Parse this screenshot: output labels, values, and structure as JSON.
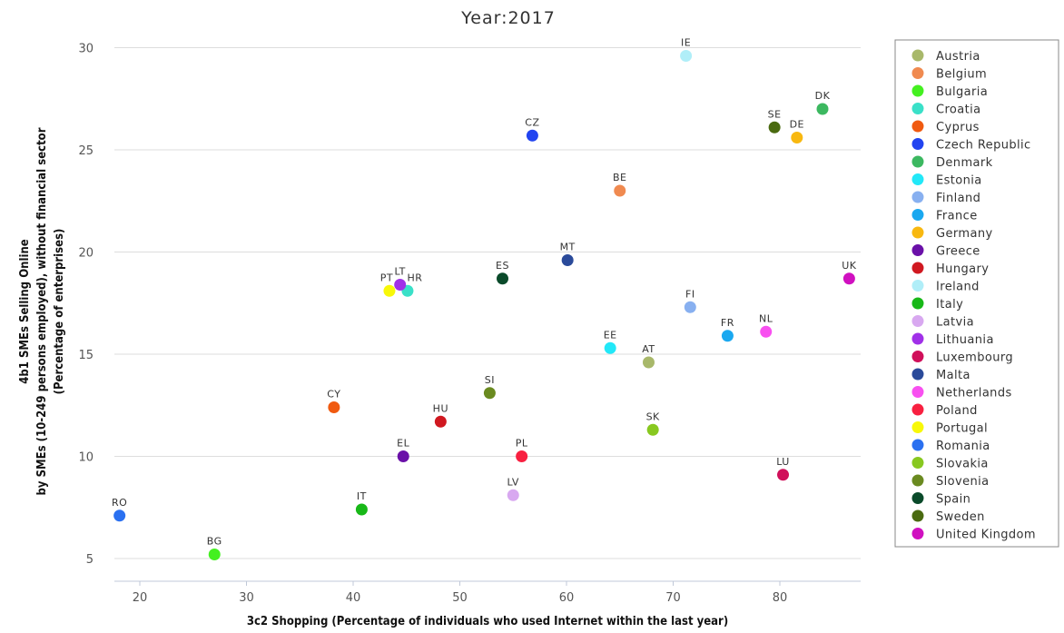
{
  "chart_data": {
    "type": "scatter",
    "title": "Year:2017",
    "xlabel": "3c2 Shopping (Percentage of individuals who used Internet within the last year)",
    "ylabel": [
      "4b1 SMEs Selling Online",
      "by SMEs (10-249 persons employed), without financial sector",
      "(Percentage of enterprises)"
    ],
    "xlim": [
      17,
      87
    ],
    "ylim": [
      3.5,
      31
    ],
    "xticks": [
      20,
      30,
      40,
      50,
      60,
      70,
      80
    ],
    "yticks": [
      5,
      10,
      15,
      20,
      25,
      30
    ],
    "grid": "horizontal",
    "legend_position": "right",
    "series": [
      {
        "name": "Austria",
        "code": "AT",
        "color": "#a8b86a",
        "x": 67.7,
        "y": 14.6
      },
      {
        "name": "Belgium",
        "code": "BE",
        "color": "#f08a50",
        "x": 65.0,
        "y": 23.0
      },
      {
        "name": "Bulgaria",
        "code": "BG",
        "color": "#44f020",
        "x": 27.0,
        "y": 5.2
      },
      {
        "name": "Croatia",
        "code": "HR",
        "color": "#3ae0c8",
        "x": 45.1,
        "y": 18.1
      },
      {
        "name": "Cyprus",
        "code": "CY",
        "color": "#f05a10",
        "x": 38.2,
        "y": 12.4
      },
      {
        "name": "Czech Republic",
        "code": "CZ",
        "color": "#2244f0",
        "x": 56.8,
        "y": 25.7
      },
      {
        "name": "Denmark",
        "code": "DK",
        "color": "#3cb860",
        "x": 84.0,
        "y": 27.0
      },
      {
        "name": "Estonia",
        "code": "EE",
        "color": "#22e8f8",
        "x": 64.1,
        "y": 15.3
      },
      {
        "name": "Finland",
        "code": "FI",
        "color": "#88b0f0",
        "x": 71.6,
        "y": 17.3
      },
      {
        "name": "France",
        "code": "FR",
        "color": "#1aa8f0",
        "x": 75.1,
        "y": 15.9
      },
      {
        "name": "Germany",
        "code": "DE",
        "color": "#f8b810",
        "x": 81.6,
        "y": 25.6
      },
      {
        "name": "Greece",
        "code": "EL",
        "color": "#6a10a8",
        "x": 44.7,
        "y": 10.0
      },
      {
        "name": "Hungary",
        "code": "HU",
        "color": "#d01820",
        "x": 48.2,
        "y": 11.7
      },
      {
        "name": "Ireland",
        "code": "IE",
        "color": "#b0eef8",
        "x": 71.2,
        "y": 29.6
      },
      {
        "name": "Italy",
        "code": "IT",
        "color": "#18b818",
        "x": 40.8,
        "y": 7.4
      },
      {
        "name": "Latvia",
        "code": "LV",
        "color": "#d8a8f0",
        "x": 55.0,
        "y": 8.1
      },
      {
        "name": "Lithuania",
        "code": "LT",
        "color": "#a030e8",
        "x": 44.4,
        "y": 18.4
      },
      {
        "name": "Luxembourg",
        "code": "LU",
        "color": "#d0105a",
        "x": 80.3,
        "y": 9.1
      },
      {
        "name": "Malta",
        "code": "MT",
        "color": "#2a4a9a",
        "x": 60.1,
        "y": 19.6
      },
      {
        "name": "Netherlands",
        "code": "NL",
        "color": "#f850f0",
        "x": 78.7,
        "y": 16.1
      },
      {
        "name": "Poland",
        "code": "PL",
        "color": "#f82040",
        "x": 55.8,
        "y": 10.0
      },
      {
        "name": "Portugal",
        "code": "PT",
        "color": "#f8f808",
        "x": 43.4,
        "y": 18.1
      },
      {
        "name": "Romania",
        "code": "RO",
        "color": "#2a70f0",
        "x": 18.1,
        "y": 7.1
      },
      {
        "name": "Slovakia",
        "code": "SK",
        "color": "#88c820",
        "x": 68.1,
        "y": 11.3
      },
      {
        "name": "Slovenia",
        "code": "SI",
        "color": "#6a8a20",
        "x": 52.8,
        "y": 13.1
      },
      {
        "name": "Spain",
        "code": "ES",
        "color": "#0a4a2a",
        "x": 54.0,
        "y": 18.7
      },
      {
        "name": "Sweden",
        "code": "SE",
        "color": "#4a6a10",
        "x": 79.5,
        "y": 26.1
      },
      {
        "name": "United Kingdom",
        "code": "UK",
        "color": "#d010c0",
        "x": 86.5,
        "y": 18.7
      }
    ]
  }
}
